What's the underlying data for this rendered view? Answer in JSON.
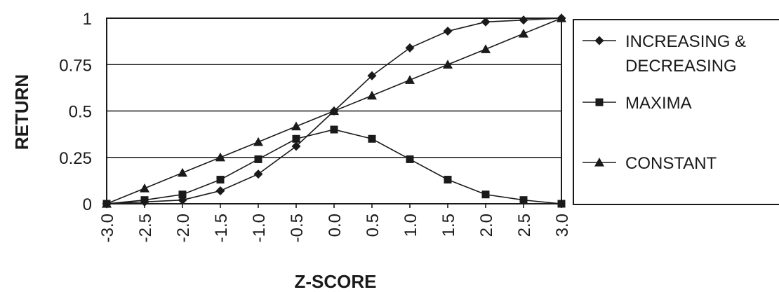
{
  "chart_data": {
    "type": "line",
    "xlabel": "Z-SCORE",
    "ylabel": "RETURN",
    "x": [
      -3.0,
      -2.5,
      -2.0,
      -1.5,
      -1.0,
      -0.5,
      0.0,
      0.5,
      1.0,
      1.5,
      2.0,
      2.5,
      3.0
    ],
    "x_tick_labels": [
      "-3.0",
      "-2.5",
      "-2.0",
      "-1.5",
      "-1.0",
      "-0.5",
      "0.0",
      "0.5",
      "1.0",
      "1.5",
      "2.0",
      "2.5",
      "3.0"
    ],
    "y_ticks": [
      0,
      0.25,
      0.5,
      0.75,
      1
    ],
    "y_tick_labels": [
      "0",
      "0.25",
      "0.5",
      "0.75",
      "1"
    ],
    "xlim": [
      -3.0,
      3.0
    ],
    "ylim": [
      0,
      1
    ],
    "grid": "horizontal",
    "legend_position": "right",
    "line_color": "#1a1a1a",
    "series": [
      {
        "name": "INCREASING & DECREASING",
        "name_lines": [
          "INCREASING &",
          "DECREASING"
        ],
        "marker": "diamond",
        "values": [
          0.0,
          0.01,
          0.02,
          0.07,
          0.16,
          0.31,
          0.5,
          0.69,
          0.84,
          0.93,
          0.98,
          0.99,
          1.0
        ]
      },
      {
        "name": "MAXIMA",
        "name_lines": [
          "MAXIMA"
        ],
        "marker": "square",
        "values": [
          0.0,
          0.02,
          0.05,
          0.13,
          0.24,
          0.35,
          0.4,
          0.35,
          0.24,
          0.13,
          0.05,
          0.02,
          0.0
        ]
      },
      {
        "name": "CONSTANT",
        "name_lines": [
          "CONSTANT"
        ],
        "marker": "triangle",
        "values": [
          0.0,
          0.083,
          0.167,
          0.25,
          0.333,
          0.417,
          0.5,
          0.583,
          0.667,
          0.75,
          0.833,
          0.917,
          1.0
        ]
      }
    ]
  }
}
